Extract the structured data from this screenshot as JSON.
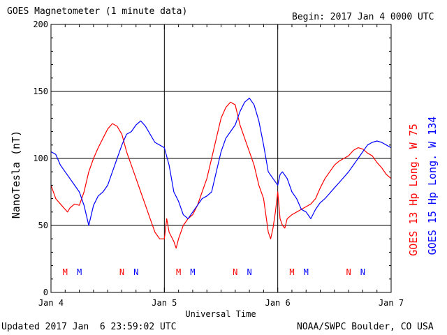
{
  "header": {
    "title": "GOES Magnetometer (1 minute data)",
    "begin_label": "Begin:",
    "begin_value": "2017 Jan 4 0000 UTC"
  },
  "footer": {
    "updated": "Updated 2017 Jan  6 23:59:02 UTC",
    "source": "NOAA/SWPC Boulder, CO USA"
  },
  "colors": {
    "goes13": "#ff0000",
    "goes15": "#0000ff",
    "axis": "#000000"
  },
  "chart_data": {
    "type": "line",
    "title": "GOES Magnetometer (1 minute data)",
    "xlabel": "Universal Time",
    "ylabel": "NanoTesla (nT)",
    "xlim": [
      0,
      72
    ],
    "ylim": [
      0,
      200
    ],
    "yticks": [
      0,
      50,
      100,
      150,
      200
    ],
    "xtick_labels": [
      {
        "x": 0,
        "label": "Jan 4"
      },
      {
        "x": 24,
        "label": "Jan 5"
      },
      {
        "x": 48,
        "label": "Jan 6"
      },
      {
        "x": 72,
        "label": "Jan 7"
      }
    ],
    "grid": true,
    "legend_position": "right-vertical",
    "series": [
      {
        "name": "GOES 13 Hp  Long. W 75",
        "color": "#ff0000",
        "x": [
          0,
          1,
          2,
          3,
          3.5,
          4,
          5,
          6,
          7,
          8,
          9,
          10,
          11,
          12,
          13,
          14,
          15,
          16,
          17,
          18,
          19,
          20,
          21,
          22,
          23,
          24,
          24.5,
          25,
          26,
          26.5,
          27,
          28,
          29,
          30,
          31,
          32,
          33,
          34,
          35,
          36,
          37,
          38,
          39,
          40,
          41,
          42,
          43,
          44,
          45,
          46,
          46.5,
          47,
          47.5,
          48,
          48.5,
          49,
          49.5,
          50,
          51,
          52,
          53,
          54,
          55,
          56,
          57,
          58,
          59,
          60,
          61,
          62,
          63,
          64,
          65,
          66,
          67,
          68,
          69,
          70,
          71,
          72
        ],
        "y": [
          80,
          70,
          66,
          62,
          60,
          63,
          66,
          65,
          75,
          90,
          100,
          108,
          115,
          122,
          126,
          124,
          118,
          105,
          95,
          85,
          75,
          65,
          55,
          45,
          40,
          40,
          55,
          45,
          38,
          33,
          40,
          50,
          55,
          58,
          65,
          75,
          85,
          100,
          115,
          130,
          138,
          142,
          140,
          125,
          115,
          105,
          95,
          80,
          70,
          45,
          40,
          48,
          60,
          75,
          55,
          50,
          48,
          55,
          58,
          60,
          62,
          64,
          66,
          70,
          78,
          85,
          90,
          95,
          98,
          100,
          102,
          106,
          108,
          107,
          104,
          102,
          97,
          93,
          88,
          85
        ],
        "markers": [
          {
            "x": 3,
            "label": "M"
          },
          {
            "x": 15,
            "label": "N"
          },
          {
            "x": 27,
            "label": "M"
          },
          {
            "x": 39,
            "label": "N"
          },
          {
            "x": 51,
            "label": "M"
          },
          {
            "x": 63,
            "label": "N"
          }
        ]
      },
      {
        "name": "GOES 15 Hp  Long. W 134",
        "color": "#0000ff",
        "x": [
          0,
          1,
          2,
          3,
          4,
          5,
          6,
          7,
          8,
          9,
          10,
          11,
          12,
          13,
          14,
          15,
          16,
          17,
          18,
          19,
          20,
          21,
          22,
          23,
          24,
          25,
          26,
          27,
          28,
          29,
          30,
          31,
          32,
          33,
          34,
          35,
          36,
          37,
          38,
          39,
          40,
          41,
          42,
          43,
          44,
          45,
          46,
          47,
          48,
          48.5,
          49,
          50,
          51,
          52,
          53,
          54,
          55,
          56,
          57,
          58,
          59,
          60,
          61,
          62,
          63,
          64,
          65,
          66,
          67,
          68,
          69,
          70,
          71,
          72
        ],
        "y": [
          105,
          103,
          95,
          90,
          85,
          80,
          75,
          65,
          50,
          65,
          72,
          75,
          80,
          90,
          100,
          110,
          118,
          120,
          125,
          128,
          124,
          118,
          112,
          110,
          108,
          95,
          75,
          68,
          58,
          55,
          60,
          65,
          70,
          72,
          75,
          90,
          105,
          115,
          120,
          125,
          135,
          142,
          145,
          140,
          128,
          110,
          90,
          85,
          80,
          88,
          90,
          85,
          75,
          70,
          62,
          60,
          55,
          62,
          67,
          70,
          74,
          78,
          82,
          86,
          90,
          95,
          100,
          105,
          110,
          112,
          113,
          112,
          110,
          108
        ],
        "markers": [
          {
            "x": 6,
            "label": "M"
          },
          {
            "x": 18,
            "label": "N"
          },
          {
            "x": 30,
            "label": "M"
          },
          {
            "x": 42,
            "label": "N"
          },
          {
            "x": 54,
            "label": "M"
          },
          {
            "x": 66,
            "label": "N"
          }
        ]
      }
    ]
  }
}
